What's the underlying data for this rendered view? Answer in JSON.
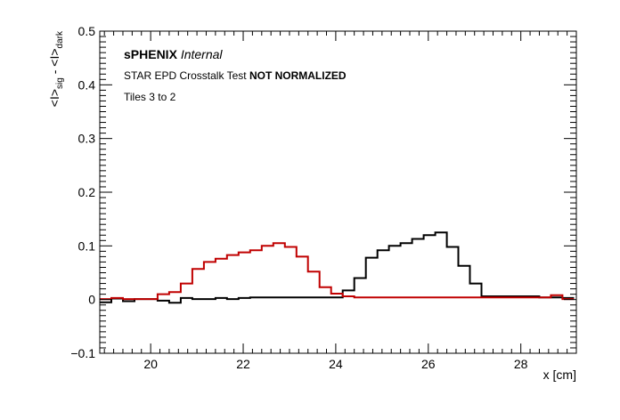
{
  "chart_data": {
    "type": "line",
    "style": "step-histogram",
    "xlabel": "x [cm]",
    "ylabel": {
      "base1": "<I>",
      "sub1": "sig",
      "mid": " - <I>",
      "sub2": "dark"
    },
    "xlim": [
      18.9,
      29.2
    ],
    "ylim": [
      -0.1,
      0.5
    ],
    "xticks": [
      20,
      22,
      24,
      26,
      28
    ],
    "yticks": [
      -0.1,
      0,
      0.1,
      0.2,
      0.3,
      0.4,
      0.5
    ],
    "ytick_labels": [
      "−0.1",
      "0",
      "0.1",
      "0.2",
      "0.3",
      "0.4",
      "0.5"
    ],
    "xtick_labels": [
      "20",
      "22",
      "24",
      "26",
      "28"
    ],
    "grid": false,
    "annotations": {
      "experiment": "sPHENIX",
      "status": "Internal",
      "test_name": "STAR EPD Crosstalk Test",
      "test_flag": "NOT NORMALIZED",
      "tiles": "Tiles 3 to 2"
    },
    "bin_edges": [
      18.9,
      19.15,
      19.4,
      19.65,
      19.9,
      20.15,
      20.4,
      20.65,
      20.9,
      21.15,
      21.4,
      21.65,
      21.9,
      22.15,
      22.4,
      22.65,
      22.9,
      23.15,
      23.4,
      23.65,
      23.9,
      24.15,
      24.4,
      24.65,
      24.9,
      25.15,
      25.4,
      25.65,
      25.9,
      26.15,
      26.4,
      26.65,
      26.9,
      27.15,
      27.4,
      27.65,
      27.9,
      28.15,
      28.4,
      28.65,
      28.9,
      29.15
    ],
    "series": [
      {
        "color": "#000000",
        "values": [
          -0.005,
          0.002,
          -0.003,
          0.001,
          0.001,
          -0.002,
          -0.006,
          0.003,
          0.001,
          0.001,
          0.003,
          0.001,
          0.003,
          0.004,
          0.004,
          0.004,
          0.004,
          0.004,
          0.004,
          0.004,
          0.004,
          0.017,
          0.04,
          0.078,
          0.092,
          0.1,
          0.105,
          0.113,
          0.12,
          0.125,
          0.098,
          0.063,
          0.03,
          0.006,
          0.006,
          0.006,
          0.006,
          0.006,
          0.004,
          0.004,
          0.003
        ]
      },
      {
        "color": "#c00000",
        "values": [
          0.001,
          0.003,
          0.001,
          0.001,
          0.001,
          0.01,
          0.014,
          0.03,
          0.057,
          0.07,
          0.076,
          0.083,
          0.088,
          0.092,
          0.1,
          0.105,
          0.098,
          0.08,
          0.052,
          0.023,
          0.011,
          0.006,
          0.004,
          0.004,
          0.004,
          0.004,
          0.004,
          0.004,
          0.004,
          0.004,
          0.004,
          0.004,
          0.004,
          0.004,
          0.004,
          0.004,
          0.004,
          0.004,
          0.004,
          0.008,
          0.001
        ]
      }
    ]
  }
}
